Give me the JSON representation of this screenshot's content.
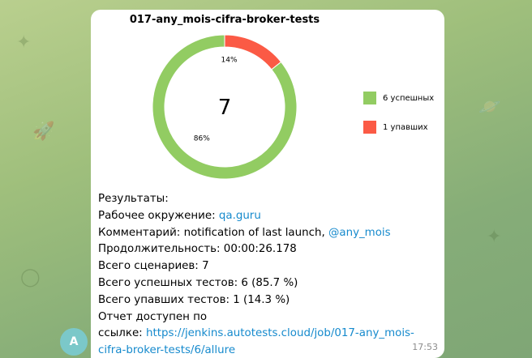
{
  "chart_data": {
    "type": "pie",
    "title": "017-any_mois-cifra-broker-tests",
    "center_label": "7",
    "slices": [
      {
        "name": "6 успешных",
        "value": 6,
        "percent_label": "86%",
        "color": "#92cc62"
      },
      {
        "name": "1 упавших",
        "value": 1,
        "percent_label": "14%",
        "color": "#fb5a45"
      }
    ],
    "legend_position": "right"
  },
  "message": {
    "results_label": "Результаты:",
    "env_label": "Рабочее окружение: ",
    "env_value": "qa.guru",
    "comment_label": "Комментарий: ",
    "comment_value": "notification of last launch, ",
    "comment_mention": "@any_mois",
    "duration_label": "Продолжительность: ",
    "duration_value": "00:00:26.178",
    "scenarios_label": "Всего сценариев: ",
    "scenarios_value": "7",
    "passed_label": "Всего успешных тестов: ",
    "passed_value": "6 (85.7 %)",
    "failed_label": "Всего упавших тестов: ",
    "failed_value": "1 (14.3 %)",
    "report_label_1": "Отчет доступен по",
    "report_label_2": "ссылке: ",
    "report_link": "https://jenkins.autotests.cloud/job/017-any_mois-cifra-broker-tests/6/allure",
    "time": "17:53"
  },
  "avatar": {
    "letter": "A",
    "color": "#7bc8c9"
  },
  "icons": [
    "rocket-doodle-icon",
    "planet-doodle-icon",
    "star-doodle-icon"
  ]
}
